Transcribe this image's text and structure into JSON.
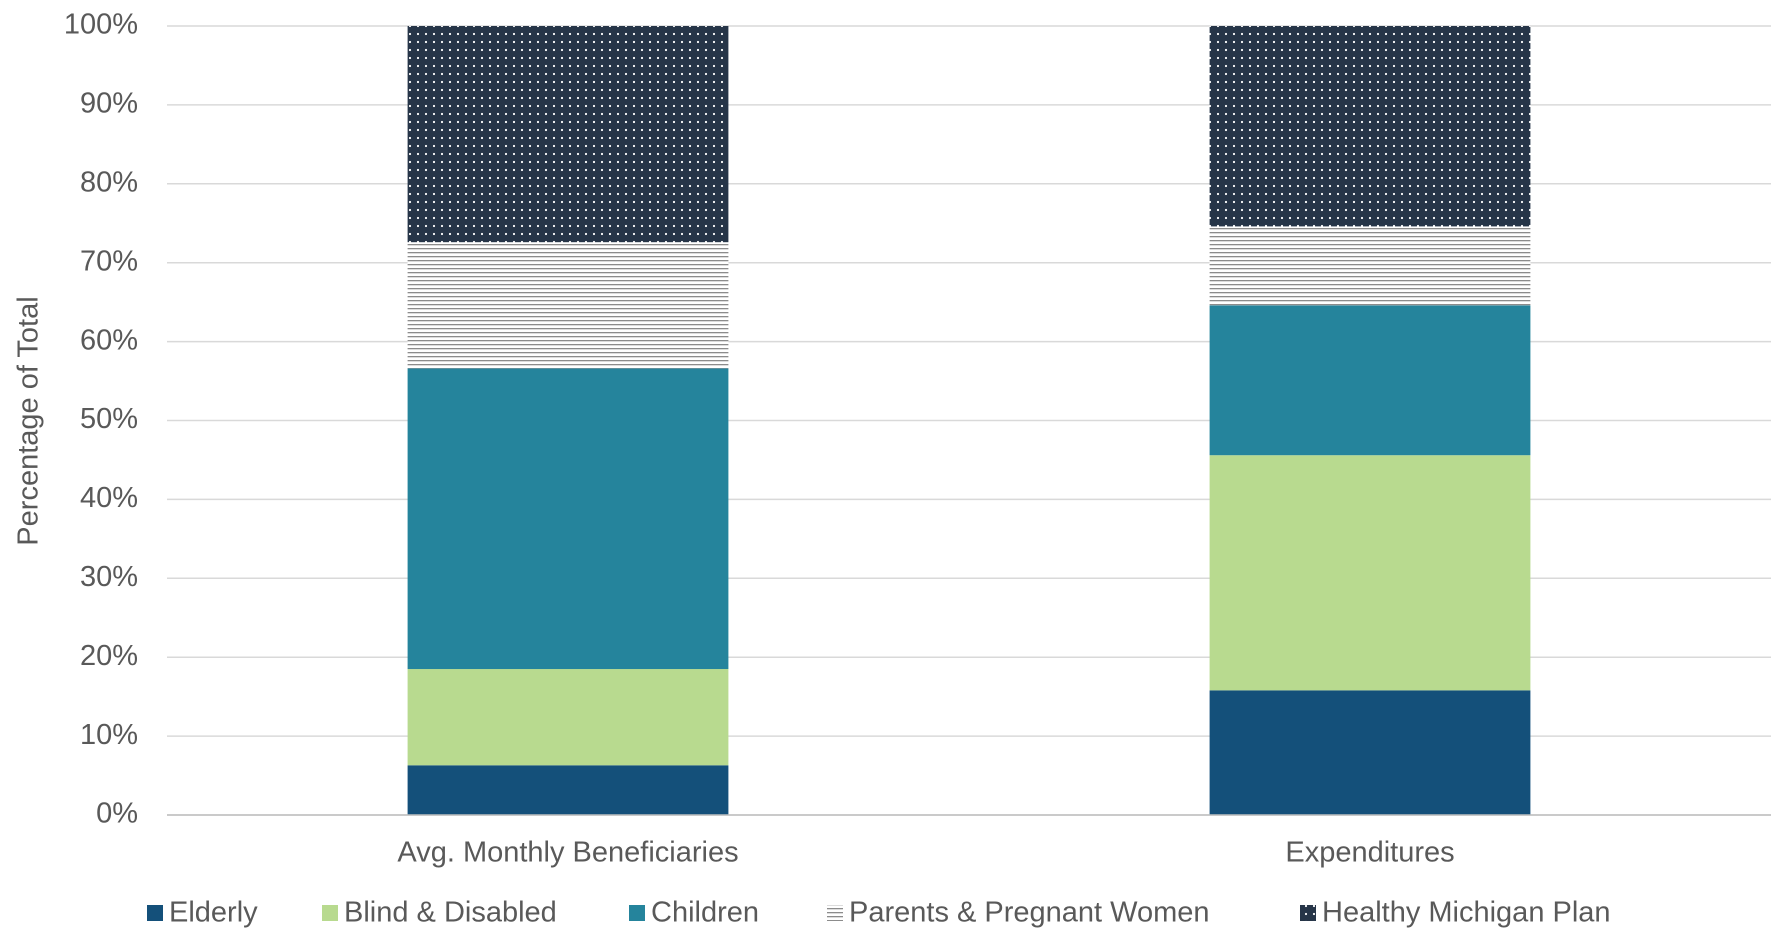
{
  "chart_data": {
    "type": "stacked_bar",
    "y_axis_label": "Percentage of Total",
    "categories": [
      "Avg. Monthly Beneficiaries",
      "Expenditures"
    ],
    "series": [
      {
        "name": "Elderly",
        "color": "#14507a",
        "values": [
          6.3,
          15.8
        ]
      },
      {
        "name": "Blind & Disabled",
        "color": "#b8da8f",
        "values": [
          12.2,
          29.8
        ]
      },
      {
        "name": "Children",
        "color": "#25849c",
        "values": [
          38.1,
          19.0
        ]
      },
      {
        "name": "Parents & Pregnant Women",
        "color": "#8c8c8c",
        "pattern": "lines",
        "values": [
          16.0,
          10.0
        ]
      },
      {
        "name": "Healthy Michigan Plan",
        "color": "#263548",
        "pattern": "dots",
        "values": [
          27.4,
          25.4
        ]
      }
    ],
    "ylim": [
      0,
      100
    ],
    "yticks": [
      {
        "value": 0,
        "label": "0%"
      },
      {
        "value": 10,
        "label": "10%"
      },
      {
        "value": 20,
        "label": "20%"
      },
      {
        "value": 30,
        "label": "30%"
      },
      {
        "value": 40,
        "label": "40%"
      },
      {
        "value": 50,
        "label": "50%"
      },
      {
        "value": 60,
        "label": "60%"
      },
      {
        "value": 70,
        "label": "70%"
      },
      {
        "value": 80,
        "label": "80%"
      },
      {
        "value": 90,
        "label": "90%"
      },
      {
        "value": 100,
        "label": "100%"
      }
    ],
    "grid": true,
    "legend": "bottom"
  }
}
